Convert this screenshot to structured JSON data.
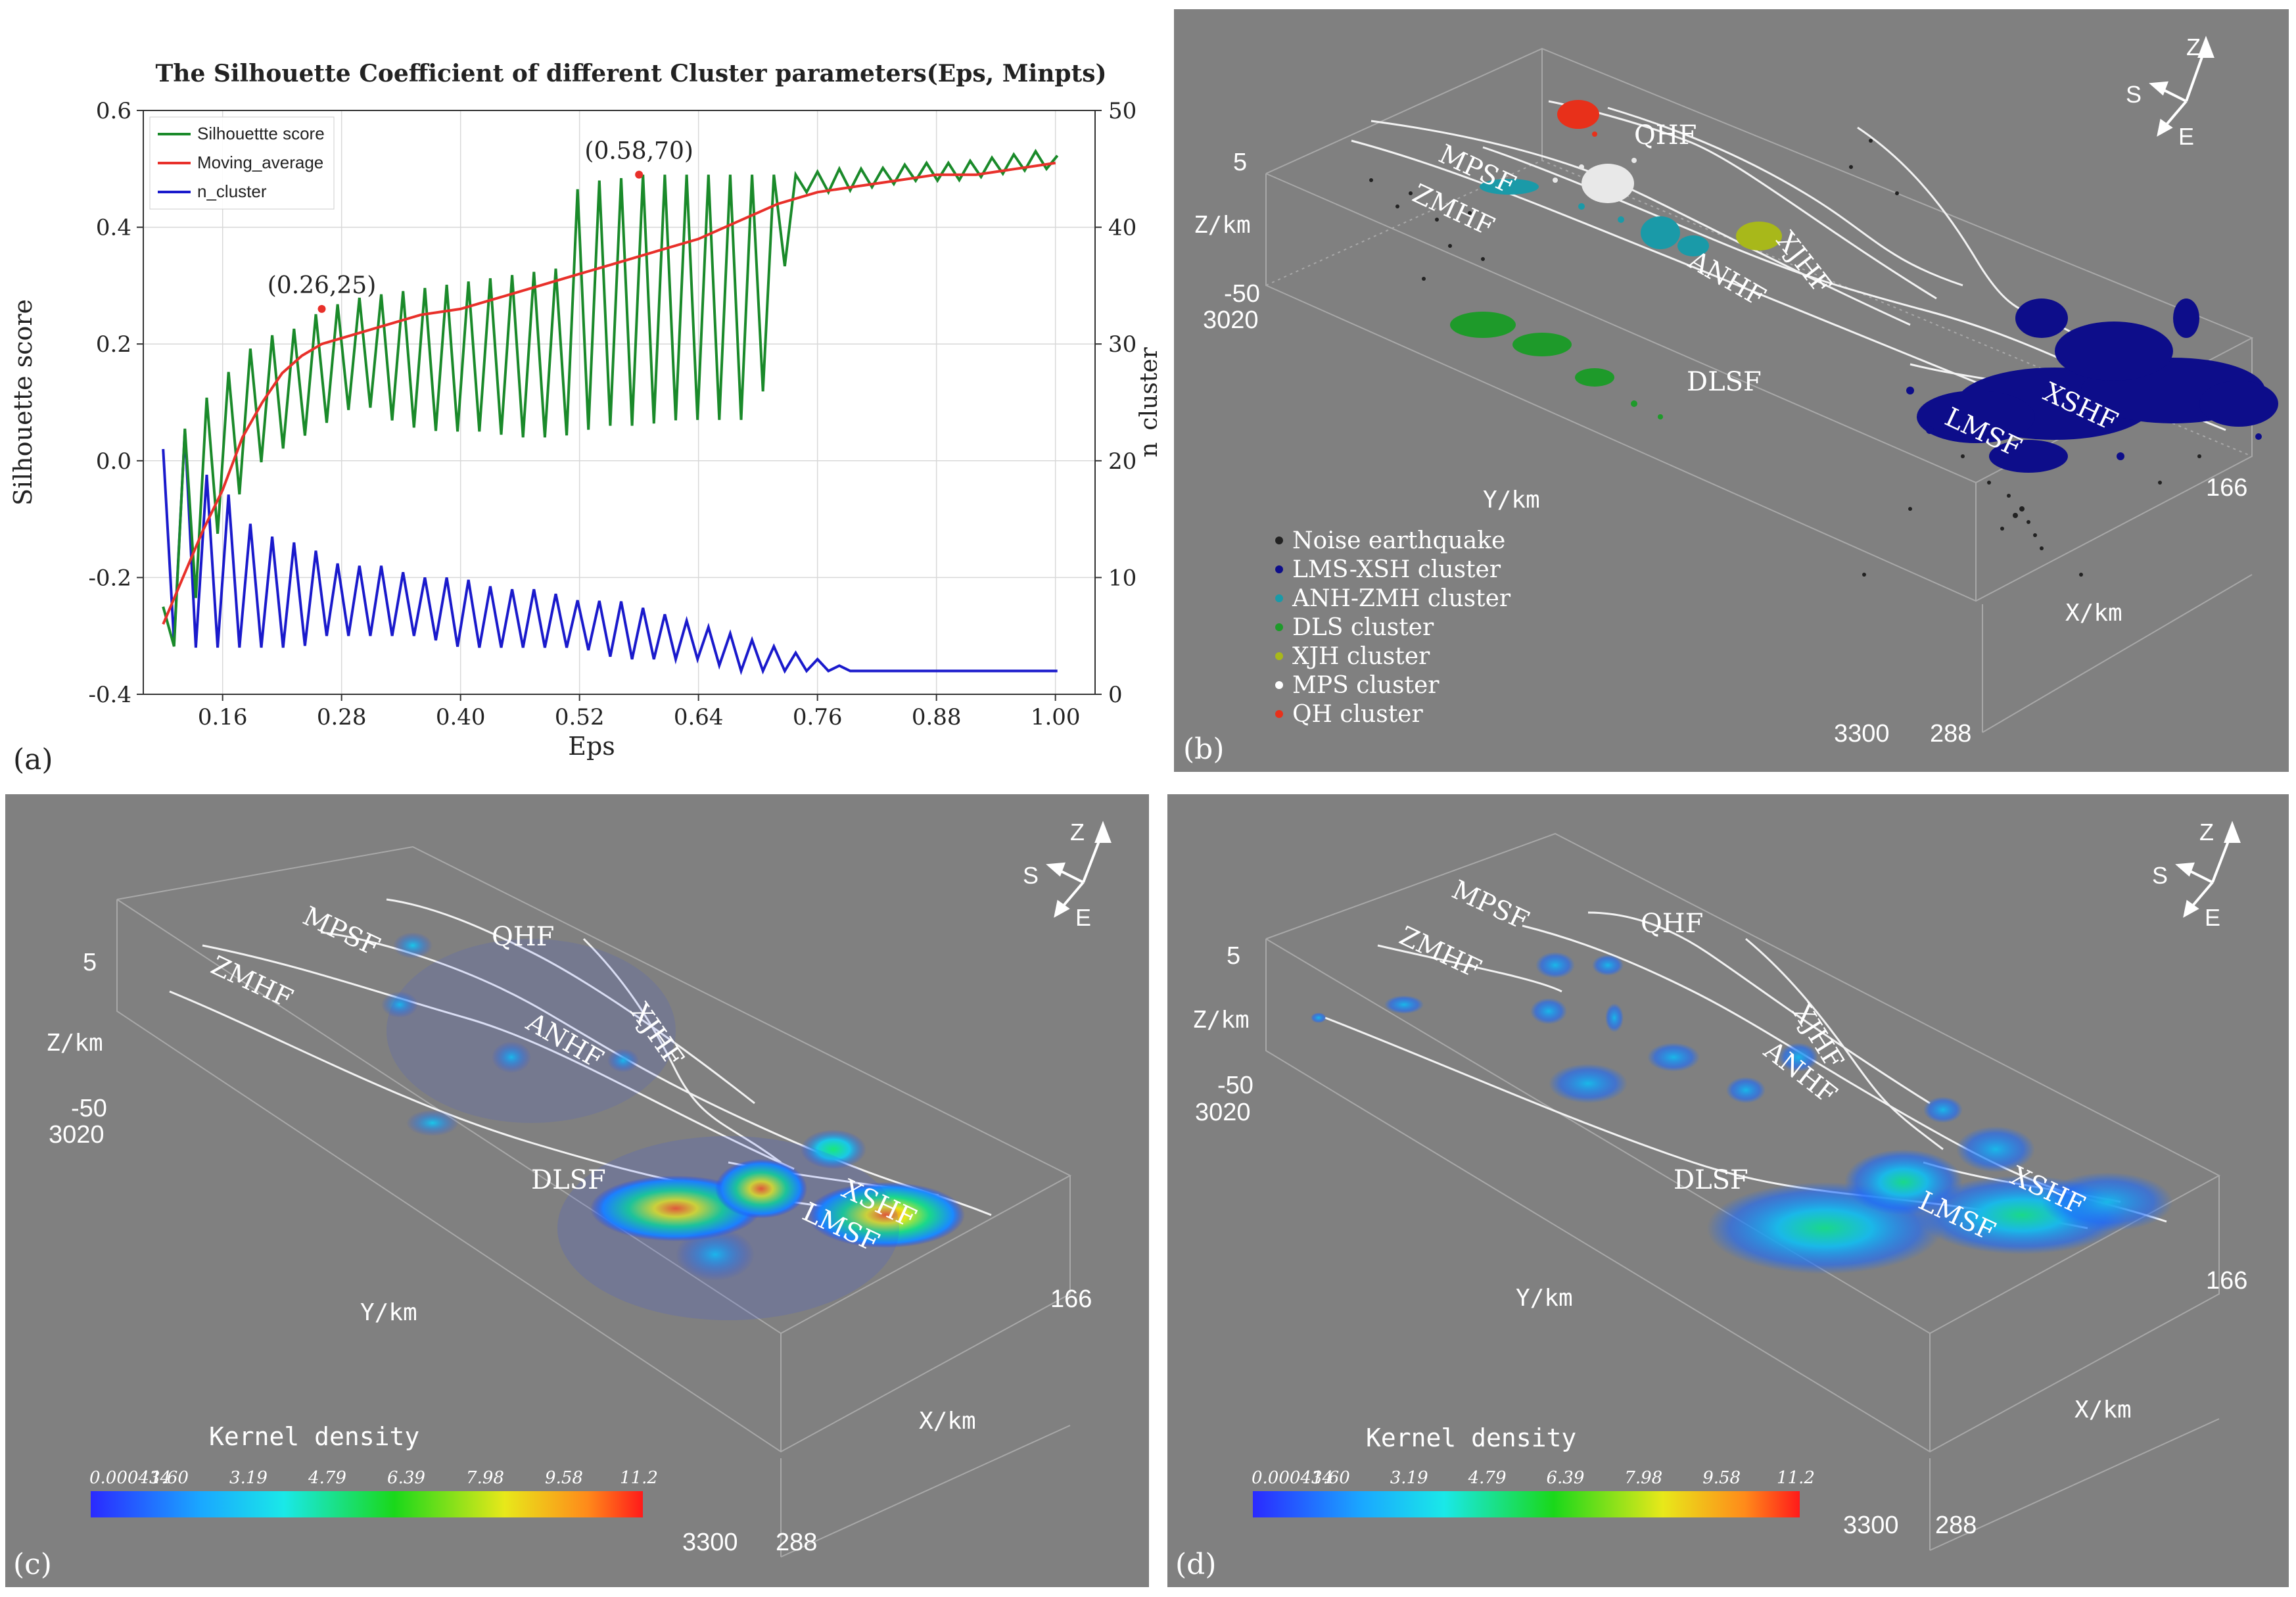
{
  "panel_a": {
    "letter": "(a)",
    "chart_data": {
      "type": "line",
      "title": "The Silhouette Coefficient of different Cluster parameters(Eps, Minpts)",
      "xlabel": "Eps",
      "ylabel": "Silhouette score",
      "y2label": "n_cluster",
      "xlim": [
        0.08,
        1.04
      ],
      "ylim": [
        -0.4,
        0.6
      ],
      "y2lim": [
        0,
        50
      ],
      "xticks": [
        0.16,
        0.28,
        0.4,
        0.52,
        0.64,
        0.76,
        0.88,
        1.0
      ],
      "xtick_labels": [
        "0.16",
        "0.28",
        "0.40",
        "0.52",
        "0.64",
        "0.76",
        "0.88",
        "1.00"
      ],
      "yticks": [
        -0.4,
        -0.2,
        0.0,
        0.2,
        0.4,
        0.6
      ],
      "ytick_labels": [
        "-0.4",
        "-0.2",
        "0.0",
        "0.2",
        "0.4",
        "0.6"
      ],
      "y2ticks": [
        0,
        10,
        20,
        30,
        40,
        50
      ],
      "y2tick_labels": [
        "0",
        "10",
        "20",
        "30",
        "40",
        "50"
      ],
      "grid": true,
      "legend_position": "top-left",
      "series": [
        {
          "name": "Silhouettte score",
          "color": "#1a8a2a",
          "axis": "left",
          "x": [
            0.1,
            0.12,
            0.14,
            0.16,
            0.18,
            0.2,
            0.22,
            0.24,
            0.26,
            0.28,
            0.3,
            0.34,
            0.38,
            0.42,
            0.46,
            0.5,
            0.52,
            0.55,
            0.58,
            0.62,
            0.66,
            0.7,
            0.74,
            0.78,
            0.82,
            0.86,
            0.9,
            0.94,
            0.98,
            1.01
          ],
          "peaks": [
            -0.25,
            0.05,
            0.1,
            0.14,
            0.18,
            0.21,
            0.22,
            0.23,
            0.26,
            0.27,
            0.28,
            0.29,
            0.3,
            0.31,
            0.32,
            0.33,
            0.48,
            0.48,
            0.49,
            0.49,
            0.49,
            0.49,
            0.49,
            0.5,
            0.5,
            0.51,
            0.51,
            0.52,
            0.53,
            0.52
          ],
          "troughs": [
            -0.34,
            -0.3,
            -0.2,
            -0.1,
            -0.05,
            0.0,
            0.02,
            0.04,
            0.06,
            0.08,
            0.1,
            0.06,
            0.05,
            0.05,
            0.04,
            0.04,
            0.05,
            0.06,
            0.06,
            0.07,
            0.07,
            0.07,
            0.46,
            0.46,
            0.47,
            0.48,
            0.48,
            0.49,
            0.5,
            0.5
          ]
        },
        {
          "name": "Moving_average",
          "color": "#e8302a",
          "axis": "left",
          "x": [
            0.1,
            0.12,
            0.14,
            0.16,
            0.18,
            0.2,
            0.22,
            0.24,
            0.26,
            0.28,
            0.32,
            0.36,
            0.4,
            0.44,
            0.48,
            0.52,
            0.56,
            0.6,
            0.64,
            0.68,
            0.72,
            0.76,
            0.8,
            0.84,
            0.88,
            0.92,
            0.96,
            1.0
          ],
          "y": [
            -0.28,
            -0.2,
            -0.12,
            -0.05,
            0.04,
            0.1,
            0.15,
            0.18,
            0.2,
            0.21,
            0.23,
            0.25,
            0.26,
            0.28,
            0.3,
            0.32,
            0.34,
            0.36,
            0.38,
            0.41,
            0.44,
            0.46,
            0.47,
            0.48,
            0.49,
            0.49,
            0.5,
            0.51
          ]
        },
        {
          "name": "n_cluster",
          "color": "#1a1acc",
          "axis": "right",
          "x": [
            0.1,
            0.12,
            0.14,
            0.16,
            0.18,
            0.2,
            0.22,
            0.24,
            0.26,
            0.28,
            0.32,
            0.36,
            0.4,
            0.44,
            0.48,
            0.52,
            0.56,
            0.6,
            0.64,
            0.68,
            0.72,
            0.76,
            0.8,
            1.01
          ],
          "peaks": [
            21,
            23,
            19,
            18,
            15,
            14,
            13,
            13,
            12,
            11,
            11,
            10,
            10,
            9,
            9,
            8,
            8,
            7,
            6,
            5,
            4,
            3,
            2,
            2
          ],
          "troughs": [
            5,
            4,
            4,
            4,
            4,
            4,
            4,
            4,
            5,
            5,
            5,
            5,
            4,
            4,
            4,
            4,
            3,
            3,
            3,
            2,
            2,
            2,
            2,
            2
          ]
        }
      ],
      "annotations": [
        {
          "label": "(0.26,25)",
          "x": 0.26,
          "y": 0.26
        },
        {
          "label": "(0.58,70)",
          "x": 0.58,
          "y": 0.49
        }
      ]
    }
  },
  "panel_b": {
    "letter": "(b)",
    "axis_labels": {
      "z": "Z/km",
      "y": "Y/km",
      "x": "X/km"
    },
    "tick_labels": {
      "z_top": "5",
      "z_bottom": "-50",
      "y_start": "3020",
      "y_end": "3300",
      "x_start": "288",
      "x_end": "166"
    },
    "compass": {
      "z": "Z",
      "s": "S",
      "e": "E"
    },
    "fault_labels": [
      "MPSF",
      "QHF",
      "ZMHF",
      "ANHF",
      "XJHF",
      "DLSF",
      "XSHF",
      "LMSF"
    ],
    "legend": [
      {
        "label": "Noise earthquake",
        "color": "#222222"
      },
      {
        "label": "LMS-XSH cluster",
        "color": "#0d0d8a"
      },
      {
        "label": "ANH-ZMH cluster",
        "color": "#1a9aa8"
      },
      {
        "label": "DLS cluster",
        "color": "#1e9a2a"
      },
      {
        "label": "XJH cluster",
        "color": "#a8b81a"
      },
      {
        "label": "MPS cluster",
        "color": "#ffffff"
      },
      {
        "label": "QH  cluster",
        "color": "#e8301a"
      }
    ]
  },
  "panel_c": {
    "letter": "(c)",
    "axis_labels": {
      "z": "Z/km",
      "y": "Y/km",
      "x": "X/km"
    },
    "tick_labels": {
      "z_top": "5",
      "z_bottom": "-50",
      "y_start": "3020",
      "y_end": "3300",
      "x_start": "288",
      "x_end": "166"
    },
    "compass": {
      "z": "Z",
      "s": "S",
      "e": "E"
    },
    "fault_labels": [
      "MPSF",
      "QHF",
      "ZMHF",
      "ANHF",
      "XJHF",
      "DLSF",
      "XSHF",
      "LMSF"
    ],
    "colorbar_title": "Kernel density",
    "colorbar_ticks": [
      "0.000434",
      "1.60",
      "3.19",
      "4.79",
      "6.39",
      "7.98",
      "9.58",
      "11.2"
    ]
  },
  "panel_d": {
    "letter": "(d)",
    "axis_labels": {
      "z": "Z/km",
      "y": "Y/km",
      "x": "X/km"
    },
    "tick_labels": {
      "z_top": "5",
      "z_bottom": "-50",
      "y_start": "3020",
      "y_end": "3300",
      "x_start": "288",
      "x_end": "166"
    },
    "compass": {
      "z": "Z",
      "s": "S",
      "e": "E"
    },
    "fault_labels": [
      "MPSF",
      "QHF",
      "ZMHF",
      "ANHF",
      "XJHF",
      "DLSF",
      "XSHF",
      "LMSF"
    ],
    "colorbar_title": "Kernel density",
    "colorbar_ticks": [
      "0.000434",
      "1.60",
      "3.19",
      "4.79",
      "6.39",
      "7.98",
      "9.58",
      "11.2"
    ]
  }
}
